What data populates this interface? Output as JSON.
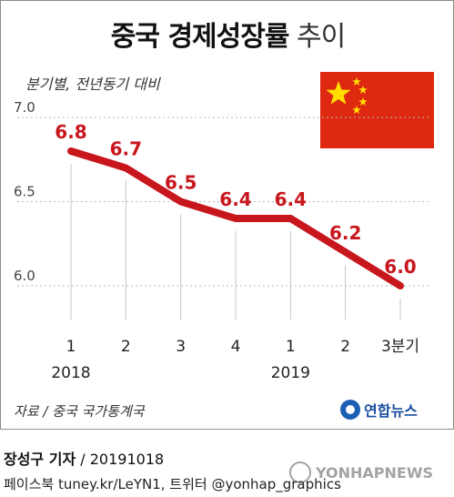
{
  "header": {
    "title_bold": "중국 경제성장률",
    "title_light": "추이"
  },
  "subtitle": "분기별, 전년동기 대비",
  "source": "자료 / 중국 국가통계국",
  "logo": {
    "text": "연합뉴스"
  },
  "byline": {
    "author": "장성구 기자",
    "date": " / 20191018"
  },
  "social": "페이스북 tuney.kr/LeYN1, 트위터 @yonhap_graphics",
  "watermark": "YONHAPNEWS",
  "colors": {
    "line": "#c8161d",
    "label": "#c8161d",
    "flag_red": "#de2910",
    "flag_star": "#ffde00"
  },
  "chart_data": {
    "type": "line",
    "categories": [
      "1",
      "2",
      "3",
      "4",
      "1",
      "2",
      "3분기"
    ],
    "year_labels": [
      {
        "label": "2018",
        "index": 0
      },
      {
        "label": "2019",
        "index": 4
      }
    ],
    "series": [
      {
        "values": [
          6.8,
          6.7,
          6.5,
          6.4,
          6.4,
          6.2,
          6.0
        ]
      }
    ],
    "y_ticks": [
      "7.0",
      "6.5",
      "6.0"
    ],
    "ylim": [
      6.0,
      7.0
    ],
    "xlabel": "",
    "ylabel": "",
    "grid": "dashed-horizontal"
  }
}
